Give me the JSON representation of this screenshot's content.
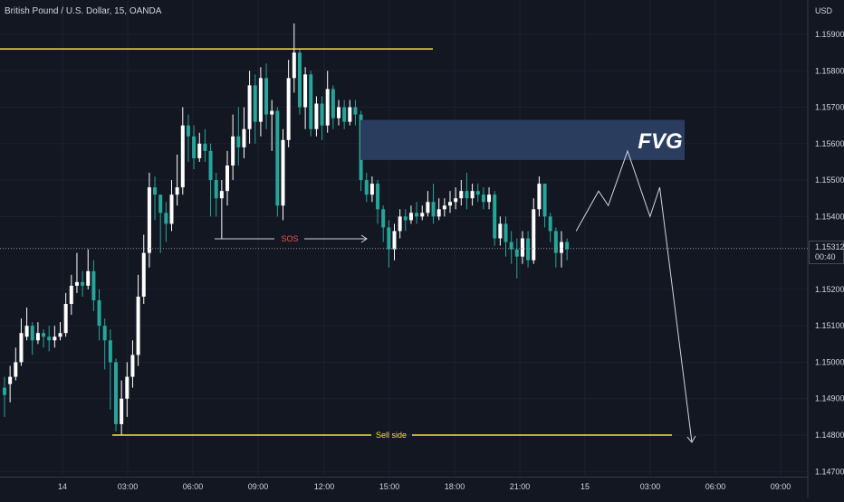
{
  "header": {
    "symbol_title": "British Pound / U.S. Dollar, 15, OANDA",
    "currency": "USD"
  },
  "colors": {
    "background": "#131722",
    "bull_candle": "#26a69a",
    "bear_candle": "#ffffff",
    "level_line": "#f5e13a",
    "fvg_box": "#2a3d5e",
    "sos_text": "#ef5350",
    "axis_text": "#d1d4dc"
  },
  "price_tag": {
    "price": "1.15312",
    "countdown": "00:40"
  },
  "chart_data": {
    "type": "candlestick",
    "symbol": "British Pound / U.S. Dollar",
    "timeframe": "15",
    "broker": "OANDA",
    "y_ticks": [
      "1.15900",
      "1.15800",
      "1.15700",
      "1.15600",
      "1.15500",
      "1.15400",
      "1.15200",
      "1.15100",
      "1.15000",
      "1.14900",
      "1.14800",
      "1.14700"
    ],
    "x_ticks": [
      "14",
      "03:00",
      "06:00",
      "09:00",
      "12:00",
      "15:00",
      "18:00",
      "21:00",
      "15",
      "03:00",
      "06:00",
      "09:00"
    ],
    "last_price": 1.15312,
    "ylim": [
      1.1469,
      1.1599
    ],
    "annotations": {
      "fvg_label": "FVG",
      "sell_side_label": "Sell side",
      "sos_label": "SOS",
      "sell_side_level": 1.148,
      "top_level": 1.1586,
      "fvg_zone": [
        1.15555,
        1.15665
      ]
    },
    "projection_path": [
      [
        0,
        1.1536
      ],
      [
        3.5,
        1.1547
      ],
      [
        5,
        1.1543
      ],
      [
        8,
        1.1558
      ],
      [
        11.5,
        1.154
      ],
      [
        13,
        1.1548
      ],
      [
        18,
        1.1478
      ]
    ],
    "candles": [
      [
        1.1491,
        1.1496,
        1.1485,
        1.1493
      ],
      [
        1.1496,
        1.1499,
        1.1489,
        1.1494
      ],
      [
        1.15,
        1.1504,
        1.1495,
        1.1496
      ],
      [
        1.1508,
        1.1512,
        1.1499,
        1.15
      ],
      [
        1.151,
        1.1515,
        1.1506,
        1.1507
      ],
      [
        1.1506,
        1.1511,
        1.1502,
        1.151
      ],
      [
        1.1508,
        1.1511,
        1.1505,
        1.1506
      ],
      [
        1.1507,
        1.1509,
        1.1504,
        1.1508
      ],
      [
        1.1506,
        1.151,
        1.1503,
        1.1507
      ],
      [
        1.1507,
        1.151,
        1.1504,
        1.1506
      ],
      [
        1.1508,
        1.1511,
        1.1506,
        1.1507
      ],
      [
        1.1516,
        1.1519,
        1.1507,
        1.1508
      ],
      [
        1.1521,
        1.1524,
        1.1513,
        1.1516
      ],
      [
        1.1522,
        1.153,
        1.1519,
        1.1521
      ],
      [
        1.1521,
        1.1525,
        1.1518,
        1.1522
      ],
      [
        1.1525,
        1.1531,
        1.152,
        1.1521
      ],
      [
        1.1517,
        1.1528,
        1.1514,
        1.1525
      ],
      [
        1.151,
        1.152,
        1.1506,
        1.1517
      ],
      [
        1.1506,
        1.1512,
        1.1498,
        1.151
      ],
      [
        1.15,
        1.1509,
        1.1487,
        1.1506
      ],
      [
        1.1483,
        1.1501,
        1.1481,
        1.15
      ],
      [
        1.149,
        1.1495,
        1.148,
        1.1483
      ],
      [
        1.1496,
        1.15,
        1.1485,
        1.149
      ],
      [
        1.1502,
        1.1506,
        1.1493,
        1.1496
      ],
      [
        1.1518,
        1.1524,
        1.1499,
        1.1502
      ],
      [
        1.153,
        1.1535,
        1.1516,
        1.1518
      ],
      [
        1.1548,
        1.1552,
        1.1526,
        1.153
      ],
      [
        1.1546,
        1.1551,
        1.1539,
        1.1548
      ],
      [
        1.1541,
        1.1546,
        1.153,
        1.1546
      ],
      [
        1.1538,
        1.1544,
        1.1533,
        1.1541
      ],
      [
        1.1546,
        1.155,
        1.1536,
        1.1538
      ],
      [
        1.1548,
        1.1557,
        1.1543,
        1.1546
      ],
      [
        1.1565,
        1.157,
        1.1546,
        1.1548
      ],
      [
        1.1562,
        1.1568,
        1.1555,
        1.1565
      ],
      [
        1.1556,
        1.1565,
        1.1553,
        1.1562
      ],
      [
        1.156,
        1.1563,
        1.1555,
        1.1556
      ],
      [
        1.1558,
        1.1564,
        1.1555,
        1.156
      ],
      [
        1.155,
        1.156,
        1.154,
        1.1558
      ],
      [
        1.1545,
        1.1552,
        1.154,
        1.155
      ],
      [
        1.1547,
        1.155,
        1.1534,
        1.1545
      ],
      [
        1.1554,
        1.1558,
        1.1543,
        1.1547
      ],
      [
        1.1562,
        1.1568,
        1.155,
        1.1554
      ],
      [
        1.1559,
        1.157,
        1.1554,
        1.1562
      ],
      [
        1.1564,
        1.157,
        1.1556,
        1.1559
      ],
      [
        1.1576,
        1.158,
        1.156,
        1.1564
      ],
      [
        1.1566,
        1.1579,
        1.156,
        1.1576
      ],
      [
        1.1578,
        1.1581,
        1.1562,
        1.1566
      ],
      [
        1.1568,
        1.1582,
        1.1564,
        1.1578
      ],
      [
        1.1569,
        1.1572,
        1.1558,
        1.1568
      ],
      [
        1.1543,
        1.157,
        1.154,
        1.1569
      ],
      [
        1.1561,
        1.1564,
        1.1539,
        1.1543
      ],
      [
        1.1578,
        1.1583,
        1.1559,
        1.1561
      ],
      [
        1.1585,
        1.1593,
        1.1574,
        1.1578
      ],
      [
        1.157,
        1.1586,
        1.1568,
        1.1585
      ],
      [
        1.1579,
        1.1581,
        1.1564,
        1.157
      ],
      [
        1.1564,
        1.158,
        1.1562,
        1.1579
      ],
      [
        1.1571,
        1.1573,
        1.1562,
        1.1564
      ],
      [
        1.1565,
        1.1573,
        1.1561,
        1.1571
      ],
      [
        1.1575,
        1.158,
        1.1563,
        1.1565
      ],
      [
        1.1567,
        1.1576,
        1.1564,
        1.1575
      ],
      [
        1.157,
        1.1572,
        1.1565,
        1.1567
      ],
      [
        1.1566,
        1.1572,
        1.1564,
        1.157
      ],
      [
        1.157,
        1.1572,
        1.1565,
        1.1566
      ],
      [
        1.1568,
        1.1572,
        1.1565,
        1.157
      ],
      [
        1.155,
        1.1569,
        1.1547,
        1.1568
      ],
      [
        1.1546,
        1.1552,
        1.1544,
        1.155
      ],
      [
        1.1549,
        1.1551,
        1.1544,
        1.1546
      ],
      [
        1.1542,
        1.155,
        1.1538,
        1.1549
      ],
      [
        1.1537,
        1.1543,
        1.1533,
        1.1542
      ],
      [
        1.1531,
        1.1539,
        1.1526,
        1.1537
      ],
      [
        1.1536,
        1.1538,
        1.1528,
        1.1531
      ],
      [
        1.154,
        1.1542,
        1.1534,
        1.1536
      ],
      [
        1.1539,
        1.1542,
        1.1536,
        1.154
      ],
      [
        1.1541,
        1.1543,
        1.1538,
        1.1539
      ],
      [
        1.154,
        1.1544,
        1.1538,
        1.1541
      ],
      [
        1.1541,
        1.1543,
        1.1539,
        1.154
      ],
      [
        1.1544,
        1.1547,
        1.154,
        1.1541
      ],
      [
        1.154,
        1.1549,
        1.1538,
        1.1544
      ],
      [
        1.1542,
        1.1545,
        1.1539,
        1.154
      ],
      [
        1.1543,
        1.1545,
        1.154,
        1.1542
      ],
      [
        1.1544,
        1.1547,
        1.1541,
        1.1543
      ],
      [
        1.1545,
        1.1548,
        1.1542,
        1.1544
      ],
      [
        1.1547,
        1.155,
        1.1543,
        1.1545
      ],
      [
        1.1545,
        1.1552,
        1.1542,
        1.1547
      ],
      [
        1.1547,
        1.1549,
        1.1543,
        1.1545
      ],
      [
        1.1546,
        1.1549,
        1.1544,
        1.1547
      ],
      [
        1.1544,
        1.1548,
        1.1542,
        1.1546
      ],
      [
        1.1546,
        1.1548,
        1.1542,
        1.1544
      ],
      [
        1.1534,
        1.1547,
        1.1532,
        1.1546
      ],
      [
        1.1538,
        1.154,
        1.1532,
        1.1534
      ],
      [
        1.1533,
        1.154,
        1.1529,
        1.1538
      ],
      [
        1.1531,
        1.1536,
        1.1527,
        1.1533
      ],
      [
        1.1529,
        1.1534,
        1.1523,
        1.1531
      ],
      [
        1.1534,
        1.1536,
        1.1527,
        1.1529
      ],
      [
        1.1528,
        1.1536,
        1.1526,
        1.1534
      ],
      [
        1.1542,
        1.1545,
        1.1527,
        1.1528
      ],
      [
        1.1549,
        1.1551,
        1.154,
        1.1542
      ],
      [
        1.154,
        1.1549,
        1.1537,
        1.1549
      ],
      [
        1.1536,
        1.1541,
        1.1533,
        1.154
      ],
      [
        1.153,
        1.1537,
        1.1526,
        1.1536
      ],
      [
        1.1533,
        1.1536,
        1.1526,
        1.153
      ],
      [
        1.1531,
        1.1534,
        1.1528,
        1.1533
      ]
    ]
  }
}
